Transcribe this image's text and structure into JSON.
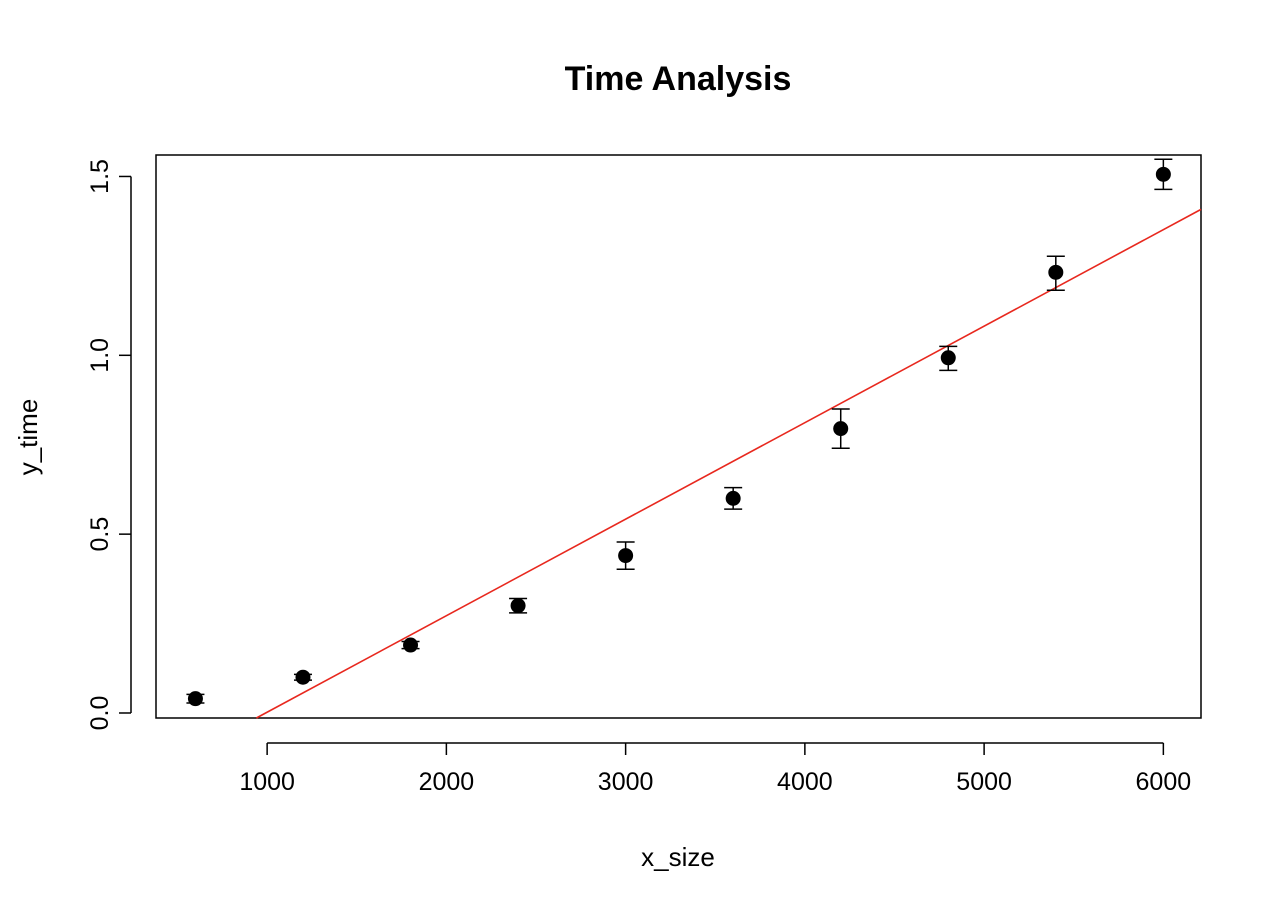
{
  "chart_data": {
    "type": "scatter",
    "title": "Time Analysis",
    "xlabel": "x_size",
    "ylabel": "y_time",
    "xlim": [
      380,
      6210
    ],
    "ylim": [
      -0.014,
      1.56
    ],
    "xticks": [
      1000,
      2000,
      3000,
      4000,
      5000,
      6000
    ],
    "xtick_labels": [
      "1000",
      "2000",
      "3000",
      "4000",
      "5000",
      "6000"
    ],
    "yticks": [
      0.0,
      0.5,
      1.0,
      1.5
    ],
    "ytick_labels": [
      "0.0",
      "0.5",
      "1.0",
      "1.5"
    ],
    "grid": false,
    "series": [
      {
        "marker": "filled-circle",
        "color": "#000000",
        "error_bars": true,
        "x": [
          600,
          1200,
          1800,
          2400,
          3000,
          3600,
          4200,
          4800,
          5400,
          6000
        ],
        "y": [
          0.04,
          0.1,
          0.19,
          0.3,
          0.44,
          0.6,
          0.795,
          0.993,
          1.232,
          1.506
        ],
        "err_low": [
          0.012,
          0.008,
          0.01,
          0.02,
          0.038,
          0.03,
          0.055,
          0.035,
          0.05,
          0.042
        ],
        "err_high": [
          0.012,
          0.008,
          0.01,
          0.02,
          0.038,
          0.03,
          0.055,
          0.032,
          0.045,
          0.042
        ]
      }
    ],
    "fit_line": {
      "color": "#e8281e",
      "x": [
        940,
        6210
      ],
      "y": [
        -0.014,
        1.408
      ]
    }
  }
}
